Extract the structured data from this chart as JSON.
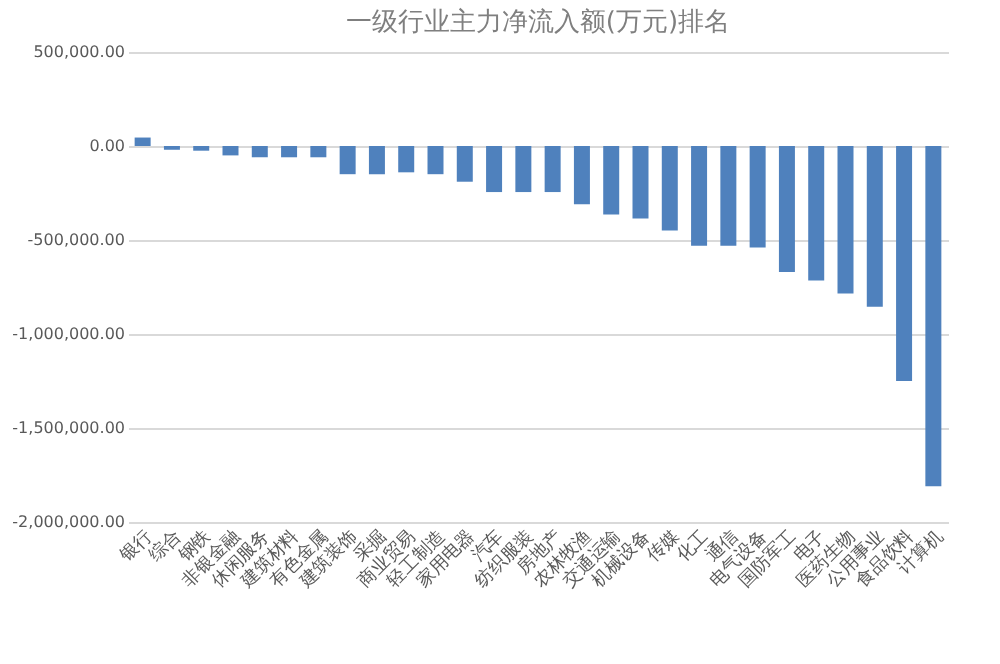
{
  "chart_data": {
    "type": "bar",
    "title": "一级行业主力净流入额(万元)排名",
    "categories": [
      "银行",
      "综合",
      "钢铁",
      "非银金融",
      "休闲服务",
      "建筑材料",
      "有色金属",
      "建筑装饰",
      "采掘",
      "商业贸易",
      "轻工制造",
      "家用电器",
      "汽车",
      "纺织服装",
      "房地产",
      "农林牧渔",
      "交通运输",
      "机械设备",
      "传媒",
      "化工",
      "通信",
      "电气设备",
      "国防军工",
      "电子",
      "医药生物",
      "公用事业",
      "食品饮料",
      "计算机"
    ],
    "values": [
      45000,
      -20000,
      -25000,
      -50000,
      -60000,
      -60000,
      -60000,
      -150000,
      -150000,
      -140000,
      -150000,
      -190000,
      -245000,
      -245000,
      -245000,
      -310000,
      -365000,
      -385000,
      -450000,
      -530000,
      -530000,
      -540000,
      -670000,
      -715000,
      -785000,
      -855000,
      -1250000,
      -1810000
    ],
    "color": "#4f81bd",
    "ylim": [
      -2000000,
      500000
    ],
    "yticks": [
      {
        "value": 500000,
        "label": "500,000.00"
      },
      {
        "value": 0,
        "label": "0.00"
      },
      {
        "value": -500000,
        "label": "-500,000.00"
      },
      {
        "value": -1000000,
        "label": "-1,000,000.00"
      },
      {
        "value": -1500000,
        "label": "-1,500,000.00"
      },
      {
        "value": -2000000,
        "label": "-2,000,000.00"
      }
    ],
    "grid": "y"
  }
}
